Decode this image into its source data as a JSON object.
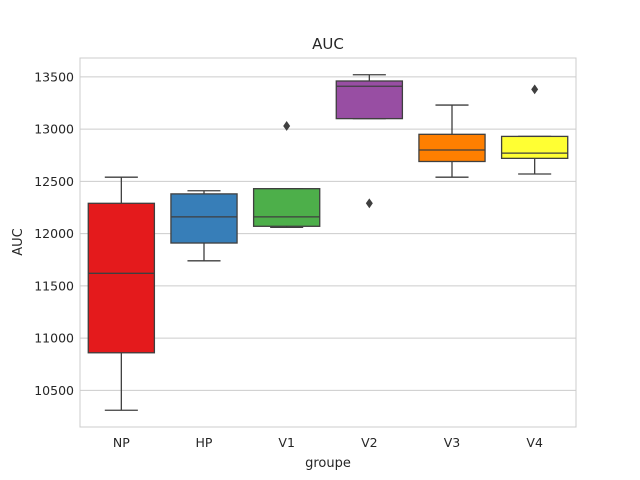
{
  "chart_data": {
    "type": "box",
    "title": "AUC",
    "xlabel": "groupe",
    "ylabel": "AUC",
    "ylim": [
      10150,
      13680
    ],
    "yticks": [
      10500,
      11000,
      11500,
      12000,
      12500,
      13000,
      13500
    ],
    "grid": true,
    "categories": [
      "NP",
      "HP",
      "V1",
      "V2",
      "V3",
      "V4"
    ],
    "colors": [
      "#e41a1c",
      "#377eb8",
      "#4daf4a",
      "#984ea3",
      "#ff7f00",
      "#ffff33"
    ],
    "boxes": [
      {
        "category": "NP",
        "whisker_low": 10310,
        "q1": 10860,
        "median": 11620,
        "q3": 12290,
        "whisker_high": 12540,
        "outliers": []
      },
      {
        "category": "HP",
        "whisker_low": 11740,
        "q1": 11910,
        "median": 12160,
        "q3": 12380,
        "whisker_high": 12410,
        "outliers": []
      },
      {
        "category": "V1",
        "whisker_low": 12060,
        "q1": 12070,
        "median": 12160,
        "q3": 12430,
        "whisker_high": 12430,
        "outliers": [
          13030
        ]
      },
      {
        "category": "V2",
        "whisker_low": 13100,
        "q1": 13100,
        "median": 13410,
        "q3": 13460,
        "whisker_high": 13520,
        "outliers": [
          12290
        ]
      },
      {
        "category": "V3",
        "whisker_low": 12540,
        "q1": 12690,
        "median": 12800,
        "q3": 12950,
        "whisker_high": 13230,
        "outliers": []
      },
      {
        "category": "V4",
        "whisker_low": 12570,
        "q1": 12720,
        "median": 12770,
        "q3": 12930,
        "whisker_high": 12930,
        "outliers": [
          13380
        ]
      }
    ]
  }
}
